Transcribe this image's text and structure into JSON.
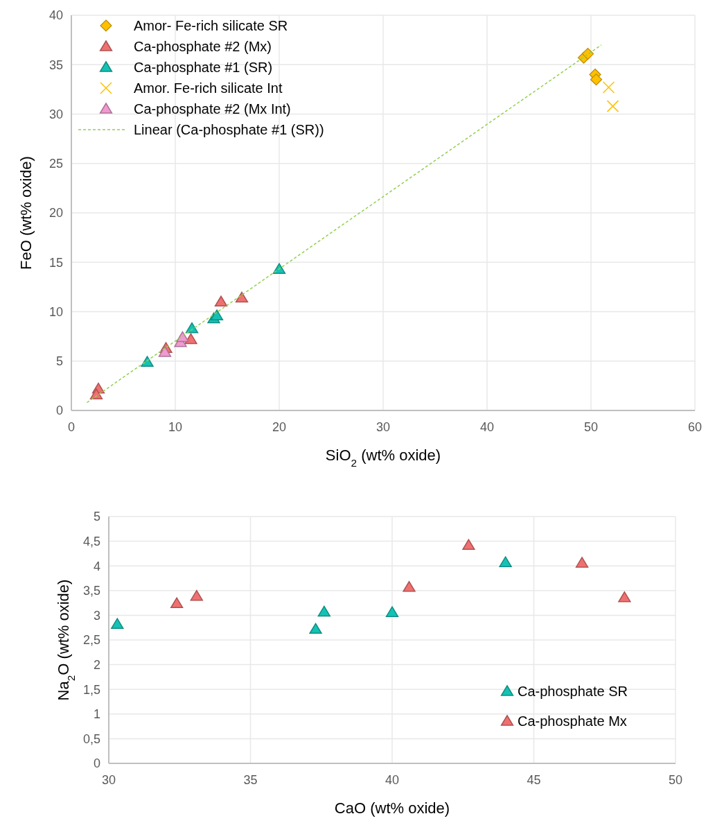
{
  "chart_data": [
    {
      "type": "scatter",
      "xlabel": "SiO$_{2}$ (wt% oxide)",
      "ylabel": "FeO (wt% oxide)",
      "xlim": [
        0,
        60
      ],
      "xticks": [
        0,
        10,
        20,
        30,
        40,
        50,
        60
      ],
      "ylim": [
        0,
        40
      ],
      "yticks": [
        0,
        5,
        10,
        15,
        20,
        25,
        30,
        35,
        40
      ],
      "grid": true,
      "legend": "top left",
      "series": [
        {
          "name": "Amor- Fe-rich silicate SR",
          "color": "#ffc000",
          "marker": "diamond",
          "x": [
            49.3,
            49.7,
            50.4,
            50.5
          ],
          "values": [
            35.7,
            36.1,
            34.0,
            33.5
          ]
        },
        {
          "name": "Ca-phosphate #2 (Mx)",
          "color": "#f07070",
          "marker": "triangle",
          "x": [
            2.6,
            2.4,
            9.1,
            11.5,
            14.4,
            16.4
          ],
          "values": [
            2.2,
            1.6,
            6.3,
            7.2,
            11.0,
            11.4
          ]
        },
        {
          "name": "Ca-phosphate #1 (SR)",
          "color": "#14c2b4",
          "marker": "triangle",
          "x": [
            7.3,
            11.6,
            13.7,
            14.0,
            20.0
          ],
          "values": [
            4.9,
            8.3,
            9.3,
            9.6,
            14.3
          ]
        },
        {
          "name": "Amor. Fe-rich silicate Int",
          "color": "#ffc000",
          "marker": "cross",
          "x": [
            51.7,
            52.1
          ],
          "values": [
            32.7,
            30.8
          ]
        },
        {
          "name": "Ca-phosphate #2 (Mx Int)",
          "color": "#f09ad0",
          "marker": "triangle",
          "x": [
            9.0,
            10.5,
            10.7
          ],
          "values": [
            5.9,
            6.9,
            7.4
          ]
        },
        {
          "name": "Linear (Ca-phosphate #1 (SR))",
          "type": "line",
          "color": "#92d050",
          "marker": "none",
          "line_style": "dashed",
          "x": [
            1.5,
            51.0
          ],
          "values": [
            0.8,
            37.0
          ]
        }
      ]
    },
    {
      "type": "scatter",
      "xlabel": "CaO (wt% oxide)",
      "ylabel": "Na$_{2}$O (wt% oxide)",
      "xlim": [
        30,
        50
      ],
      "xticks": [
        30,
        35,
        40,
        45,
        50
      ],
      "ylim": [
        0,
        5
      ],
      "yticks": [
        0,
        {
          "value": 0.5,
          "label": "0,5"
        },
        1,
        {
          "value": 1.5,
          "label": "1,5"
        },
        2,
        {
          "value": 2.5,
          "label": "2,5"
        },
        3,
        {
          "value": 3.5,
          "label": "3,5"
        },
        4,
        {
          "value": 4.5,
          "label": "4,5"
        },
        5
      ],
      "grid": true,
      "legend": "bottom right",
      "series": [
        {
          "name": "Ca-phosphate SR",
          "color": "#14c2b4",
          "marker": "triangle",
          "x": [
            30.3,
            37.3,
            37.6,
            40.0,
            44.0
          ],
          "values": [
            2.82,
            2.72,
            3.07,
            3.06,
            4.07
          ]
        },
        {
          "name": "Ca-phosphate Mx",
          "color": "#f07070",
          "marker": "triangle",
          "x": [
            32.4,
            33.1,
            40.6,
            42.7,
            46.7,
            48.2
          ],
          "values": [
            3.24,
            3.39,
            3.57,
            4.42,
            4.06,
            3.36
          ]
        }
      ]
    }
  ]
}
